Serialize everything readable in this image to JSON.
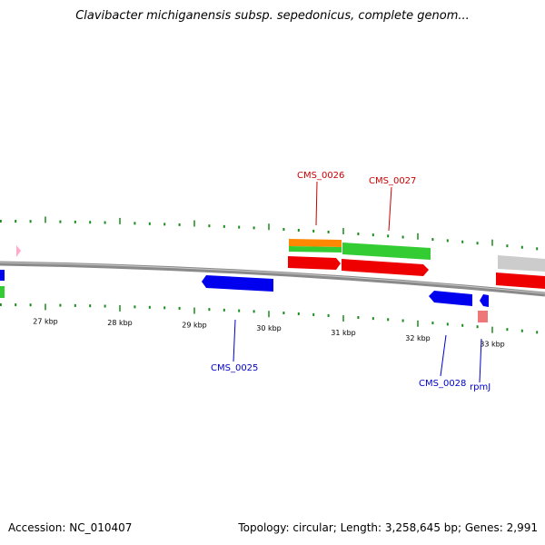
{
  "title": "Clavibacter michiganensis subsp. sepedonicus, complete genom...",
  "accession": "Accession: NC_010407",
  "summary": "Topology: circular; Length: 3,258,645 bp; Genes: 2,991",
  "colors": {
    "backbone": "#8a8a8a",
    "ticks": "#1a8a1a",
    "forward_label": "#cc0000",
    "reverse_label": "#0000cc",
    "cds_red": "#ee0000",
    "cds_blue": "#0000ee",
    "cds_green": "#33cc33",
    "cds_orange": "#ff8800",
    "cds_gray": "#cccccc",
    "cds_pink": "#ffaacc",
    "cds_salmon": "#ee7777"
  },
  "ticks": [
    {
      "kbp": 27,
      "label": "27 kbp"
    },
    {
      "kbp": 28,
      "label": "28 kbp"
    },
    {
      "kbp": 29,
      "label": "29 kbp"
    },
    {
      "kbp": 30,
      "label": "30 kbp"
    },
    {
      "kbp": 31,
      "label": "31 kbp"
    },
    {
      "kbp": 32,
      "label": "32 kbp"
    },
    {
      "kbp": 33,
      "label": "33 kbp"
    }
  ],
  "gene_labels": {
    "cms_0026": "CMS_0026",
    "cms_0027": "CMS_0027",
    "cms_0025": "CMS_0025",
    "cms_0028": "CMS_0028",
    "rpmj": "rpmJ"
  }
}
